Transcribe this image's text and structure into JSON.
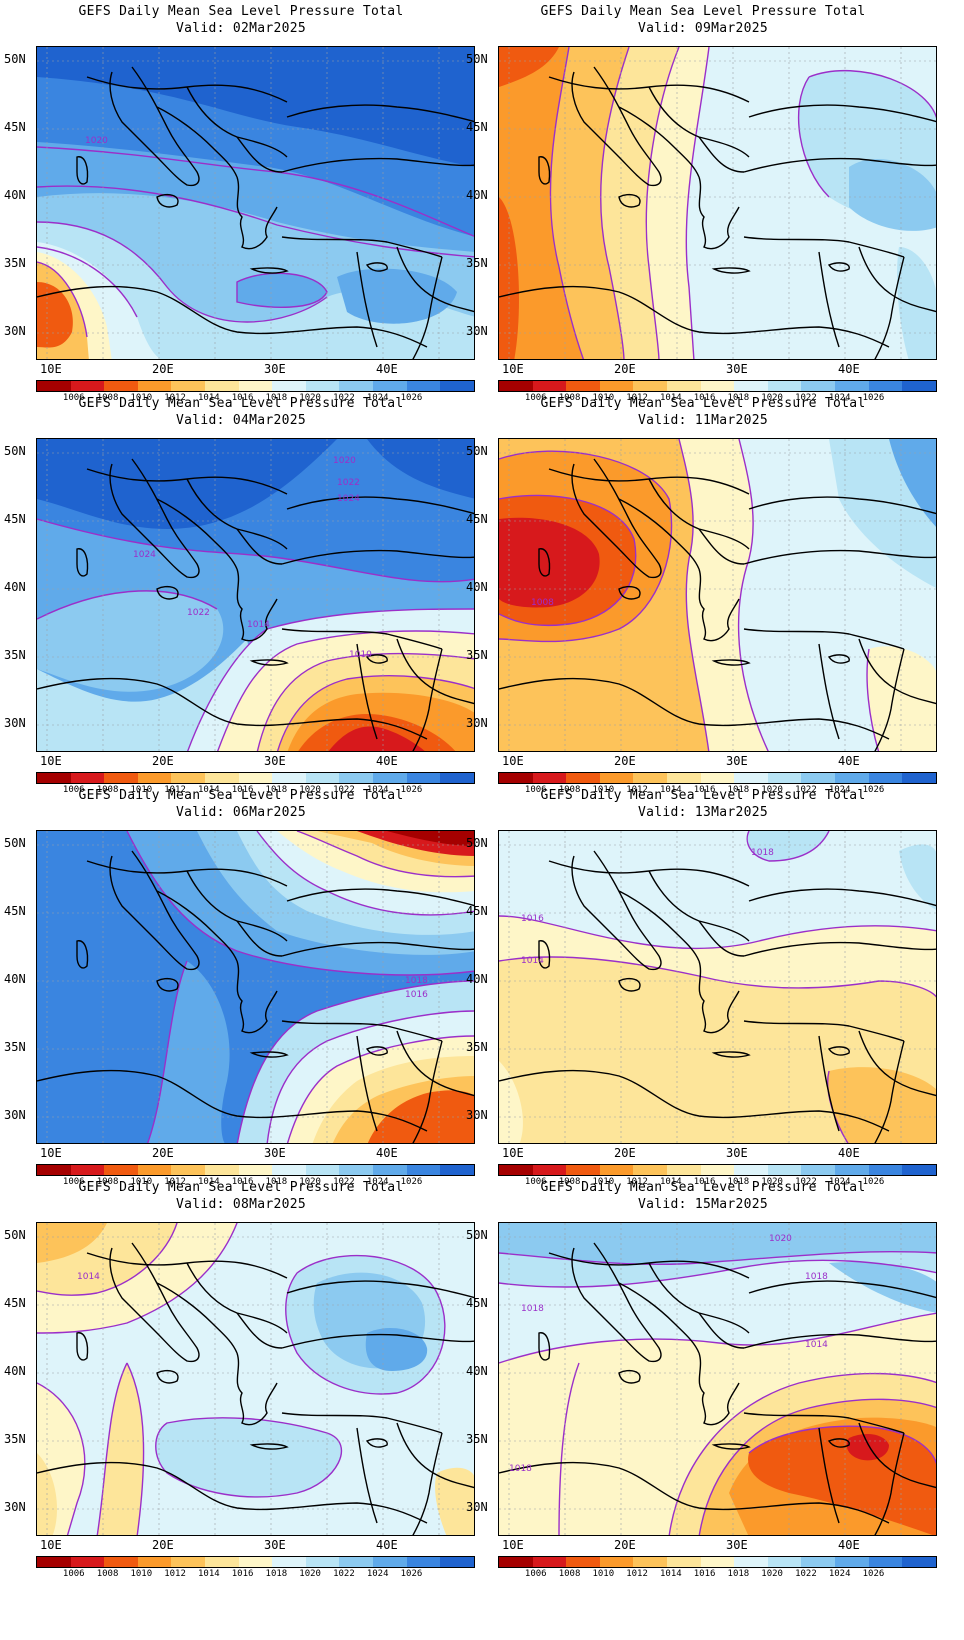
{
  "colorbar": {
    "labels": [
      "1006",
      "1008",
      "1010",
      "1012",
      "1014",
      "1016",
      "1018",
      "1020",
      "1022",
      "1024",
      "1026"
    ],
    "colors": [
      "#a50000",
      "#d7191c",
      "#f05a10",
      "#fb9a2b",
      "#fdc35a",
      "#fde59a",
      "#fef6c8",
      "#def4fa",
      "#b8e4f5",
      "#8ccaf0",
      "#60aaea",
      "#3a85e0",
      "#1f63cf"
    ]
  },
  "axes": {
    "lat_labels": [
      "50N",
      "45N",
      "40N",
      "35N",
      "30N"
    ],
    "lon_labels": [
      "10E",
      "20E",
      "30E",
      "40E"
    ]
  },
  "panels": [
    {
      "title": "GEFS Daily Mean Sea Level Pressure Total",
      "valid": "Valid: 02Mar2025",
      "contour_labels": [
        "1020"
      ],
      "chart_data": {
        "type": "contour-map",
        "dominant": "high"
      }
    },
    {
      "title": "GEFS Daily Mean Sea Level Pressure Total",
      "valid": "Valid: 09Mar2025",
      "contour_labels": [],
      "chart_data": {
        "type": "contour-map",
        "dominant": "mixed"
      }
    },
    {
      "title": "GEFS Daily Mean Sea Level Pressure Total",
      "valid": "Valid: 04Mar2025",
      "contour_labels": [
        "1020",
        "1022",
        "1024",
        "1024",
        "1022",
        "1014",
        "1010"
      ],
      "chart_data": {
        "type": "contour-map",
        "dominant": "high-north low-southeast"
      }
    },
    {
      "title": "GEFS Daily Mean Sea Level Pressure Total",
      "valid": "Valid: 11Mar2025",
      "contour_labels": [
        "1008"
      ],
      "chart_data": {
        "type": "contour-map",
        "dominant": "low-west"
      }
    },
    {
      "title": "GEFS Daily Mean Sea Level Pressure Total",
      "valid": "Valid: 06Mar2025",
      "contour_labels": [
        "1018",
        "1016"
      ],
      "chart_data": {
        "type": "contour-map",
        "dominant": "high-west low-northeast"
      }
    },
    {
      "title": "GEFS Daily Mean Sea Level Pressure Total",
      "valid": "Valid: 13Mar2025",
      "contour_labels": [
        "1018",
        "1016",
        "1014"
      ],
      "chart_data": {
        "type": "contour-map",
        "dominant": "flat"
      }
    },
    {
      "title": "GEFS Daily Mean Sea Level Pressure Total",
      "valid": "Valid: 08Mar2025",
      "contour_labels": [
        "1014"
      ],
      "chart_data": {
        "type": "contour-map",
        "dominant": "flat-high-northeast"
      }
    },
    {
      "title": "GEFS Daily Mean Sea Level Pressure Total",
      "valid": "Valid: 15Mar2025",
      "contour_labels": [
        "1020",
        "1018",
        "1018",
        "1014",
        "1018"
      ],
      "chart_data": {
        "type": "contour-map",
        "dominant": "low-southeast"
      }
    }
  ]
}
